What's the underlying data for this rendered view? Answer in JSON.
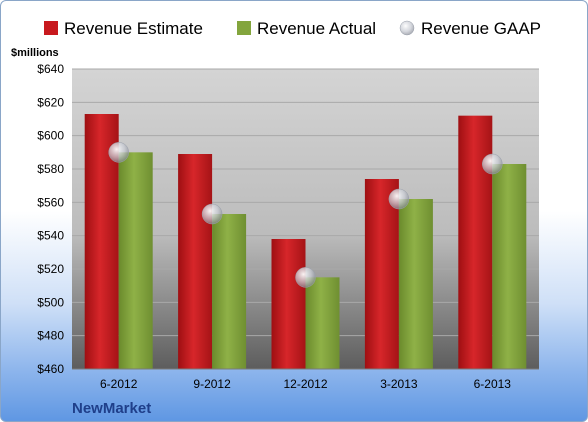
{
  "colors": {
    "estimate": "#c8191e",
    "actual": "#83a53d",
    "gaap": "#c9ccd4",
    "company": "#1f3f8a"
  },
  "chart_data": {
    "type": "bar",
    "categories": [
      "6-2012",
      "9-2012",
      "12-2012",
      "3-2013",
      "6-2013"
    ],
    "series": [
      {
        "name": "Revenue Estimate",
        "kind": "bar",
        "values": [
          613,
          589,
          538,
          574,
          612
        ]
      },
      {
        "name": "Revenue Actual",
        "kind": "bar",
        "values": [
          590,
          553,
          515,
          562,
          583
        ]
      },
      {
        "name": "Revenue GAAP",
        "kind": "marker",
        "values": [
          590,
          553,
          515,
          562,
          583
        ]
      }
    ],
    "ylabel": "$millions",
    "ylim": [
      460,
      640
    ],
    "yticks": [
      460,
      480,
      500,
      520,
      540,
      560,
      580,
      600,
      620,
      640
    ],
    "ytick_labels": [
      "$460",
      "$480",
      "$500",
      "$520",
      "$540",
      "$560",
      "$580",
      "$600",
      "$620",
      "$640"
    ],
    "grid": true,
    "legend_position": "top"
  },
  "company": "NewMarket"
}
